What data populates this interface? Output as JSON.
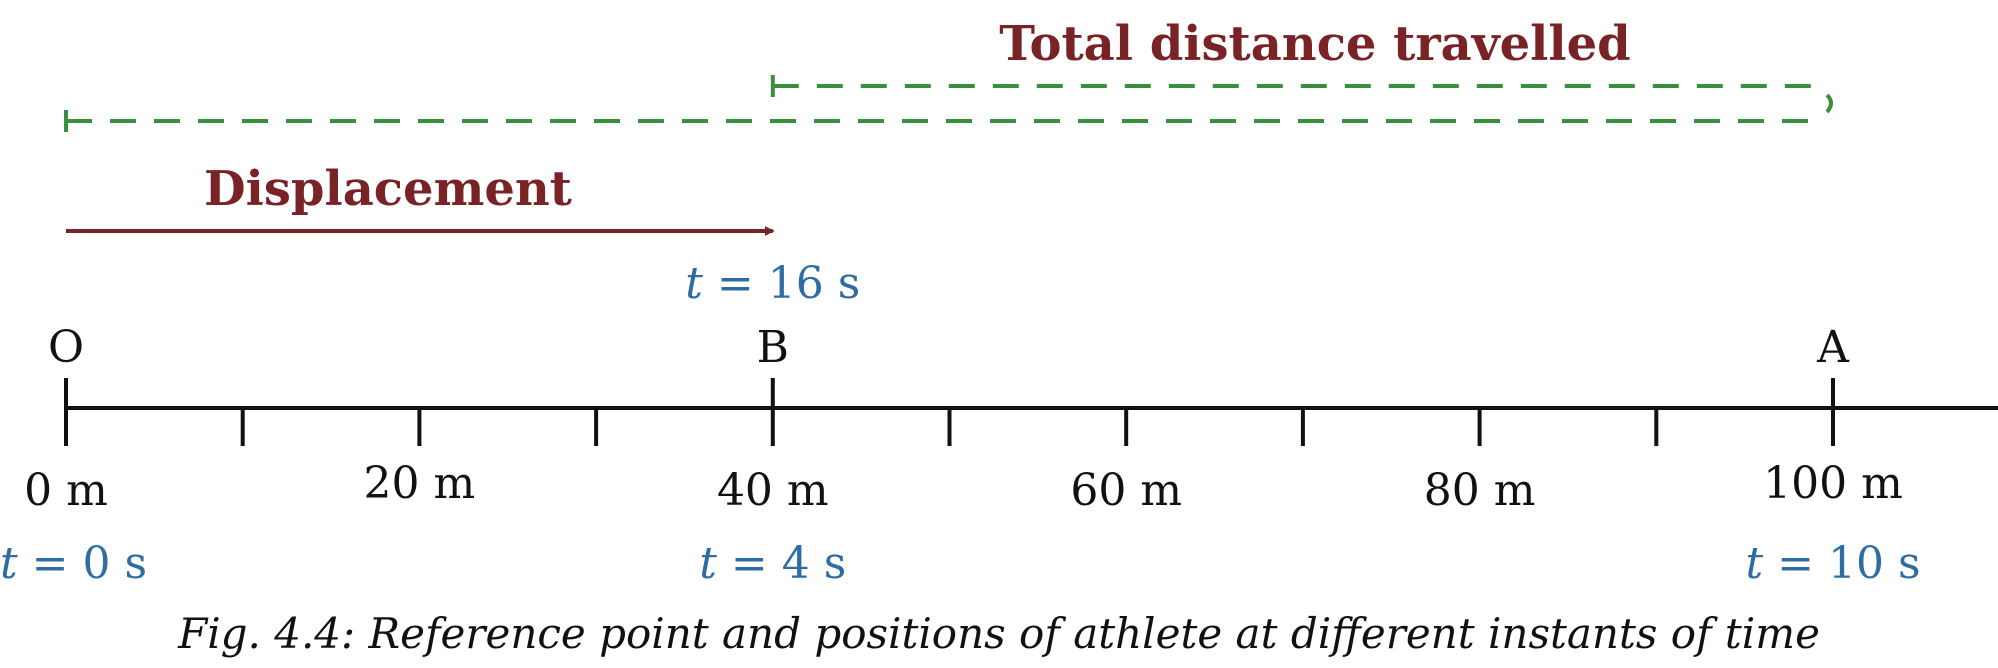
{
  "colors": {
    "displacement": "#7a2326",
    "distance": "#3a8f3e",
    "axis": "#111111",
    "time": "#2e6da4"
  },
  "labels": {
    "total_distance": "Total distance travelled",
    "displacement": "Displacement"
  },
  "points": [
    {
      "name": "O",
      "position_m": 0
    },
    {
      "name": "B",
      "position_m": 40
    },
    {
      "name": "A",
      "position_m": 100
    }
  ],
  "axis": {
    "min_m": 0,
    "max_m": 110,
    "minor_step_m": 10,
    "tick_labels": [
      "0 m",
      "20 m",
      "40 m",
      "60 m",
      "80 m",
      "100 m"
    ]
  },
  "times": [
    {
      "position_m": 0,
      "var": "t",
      "text": " = 0 s"
    },
    {
      "position_m": 40,
      "var": "t",
      "text": " = 4 s"
    },
    {
      "position_m": 100,
      "var": "t",
      "text": " = 10 s"
    },
    {
      "position_m": 40,
      "var": "t",
      "text": " = 16 s"
    }
  ],
  "caption": "Fig. 4.4: Reference point and positions of athlete at different instants of time"
}
